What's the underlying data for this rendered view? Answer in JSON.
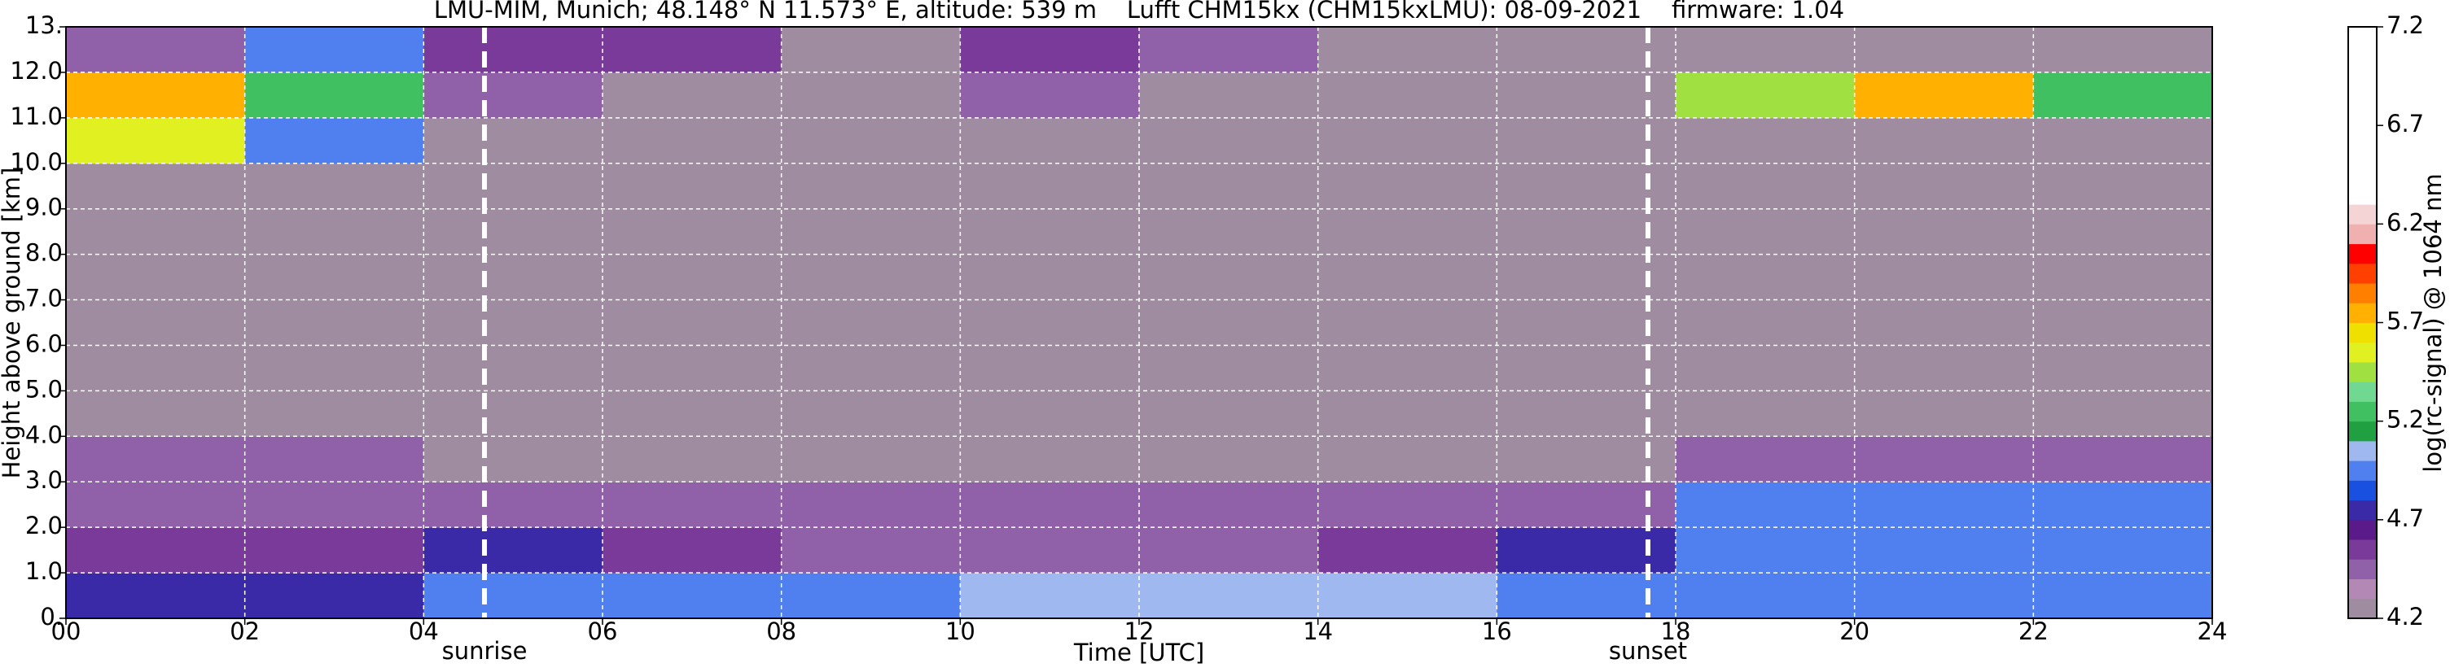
{
  "chart_data": {
    "type": "heatmap",
    "title": "LMU-MIM, Munich; 48.148° N 11.573° E, altitude: 539 m    Lufft CHM15kx (CHM15kxLMU): 08-09-2021    firmware: 1.04",
    "xlabel": "Time [UTC]",
    "ylabel": "Height above ground [km]",
    "colorbar_label": "log(rc-signal) @ 1064 nm",
    "x_bins": [
      0,
      2,
      4,
      6,
      8,
      10,
      12,
      14,
      16,
      18,
      20,
      22,
      24
    ],
    "y_bins": [
      0,
      1,
      2,
      3,
      4,
      5,
      6,
      7,
      8,
      9,
      10,
      11,
      12,
      13
    ],
    "z": [
      [
        4.8,
        4.8,
        4.9,
        4.9,
        5.0,
        5.1,
        5.1,
        5.1,
        5.0,
        4.9,
        4.9,
        4.9
      ],
      [
        4.6,
        4.6,
        4.7,
        4.6,
        4.5,
        4.5,
        4.5,
        4.6,
        4.7,
        4.9,
        4.9,
        4.9
      ],
      [
        4.5,
        4.5,
        4.5,
        4.4,
        4.4,
        4.4,
        4.4,
        4.4,
        4.5,
        5.0,
        4.9,
        4.9
      ],
      [
        4.4,
        4.4,
        4.3,
        4.3,
        4.3,
        4.3,
        4.3,
        4.3,
        4.3,
        4.5,
        4.5,
        4.5
      ],
      [
        4.3,
        4.3,
        4.2,
        4.2,
        4.2,
        4.2,
        4.2,
        4.2,
        4.2,
        4.3,
        4.3,
        4.3
      ],
      [
        4.3,
        4.3,
        4.2,
        4.2,
        4.2,
        4.2,
        4.2,
        4.2,
        4.2,
        4.3,
        4.3,
        4.3
      ],
      [
        4.3,
        4.3,
        4.2,
        4.2,
        4.2,
        4.2,
        4.2,
        4.2,
        4.2,
        4.3,
        4.3,
        4.3
      ],
      [
        4.3,
        4.3,
        4.2,
        4.2,
        4.2,
        4.2,
        4.2,
        4.2,
        4.2,
        4.3,
        4.3,
        4.3
      ],
      [
        4.3,
        4.3,
        4.2,
        4.2,
        4.2,
        4.2,
        4.2,
        4.2,
        4.2,
        4.3,
        4.3,
        4.3
      ],
      [
        4.3,
        4.3,
        4.2,
        4.2,
        4.2,
        4.2,
        4.2,
        4.2,
        4.2,
        4.3,
        4.3,
        4.3
      ],
      [
        5.6,
        5.0,
        4.2,
        4.2,
        4.2,
        4.2,
        4.2,
        4.2,
        4.2,
        4.3,
        4.3,
        4.3
      ],
      [
        5.7,
        5.3,
        4.5,
        4.3,
        4.3,
        4.4,
        4.3,
        4.2,
        4.2,
        5.4,
        5.8,
        5.2
      ],
      [
        4.5,
        4.9,
        4.6,
        4.6,
        4.3,
        4.6,
        4.5,
        4.2,
        4.2,
        4.3,
        4.3,
        4.3
      ]
    ],
    "xlim": [
      0,
      24
    ],
    "ylim": [
      0,
      13
    ],
    "zlim": [
      4.2,
      7.2
    ],
    "xticks": [
      {
        "value": 0,
        "label": "00"
      },
      {
        "value": 2,
        "label": "02"
      },
      {
        "value": 4,
        "label": "04"
      },
      {
        "value": 6,
        "label": "06"
      },
      {
        "value": 8,
        "label": "08"
      },
      10,
      12,
      14,
      16,
      18,
      20,
      22,
      24
    ],
    "yticks": [
      {
        "value": 0,
        "label": "0."
      },
      {
        "value": 1,
        "label": "1.0"
      },
      {
        "value": 2,
        "label": "2.0"
      },
      {
        "value": 3,
        "label": "3.0"
      },
      {
        "value": 4,
        "label": "4.0"
      },
      {
        "value": 5,
        "label": "5.0"
      },
      {
        "value": 6,
        "label": "6.0"
      },
      {
        "value": 7,
        "label": "7.0"
      },
      {
        "value": 8,
        "label": "8.0"
      },
      {
        "value": 9,
        "label": "9.0"
      },
      {
        "value": 10,
        "label": "10.0"
      },
      {
        "value": 11,
        "label": "11.0"
      },
      {
        "value": 12,
        "label": "12.0"
      },
      {
        "value": 13,
        "label": "13."
      }
    ],
    "zticks": [
      4.2,
      4.7,
      5.2,
      5.7,
      6.2,
      6.7,
      7.2
    ],
    "grid": true,
    "vlines": [
      {
        "x": 4.68,
        "label": "sunrise"
      },
      {
        "x": 17.69,
        "label": "sunset"
      }
    ],
    "colorscale": [
      "#a08ca0",
      "#b488b4",
      "#9060a8",
      "#7a3a9a",
      "#5a1a8a",
      "#3a2aa8",
      "#1a50e0",
      "#5080f0",
      "#a0b8f0",
      "#20a040",
      "#40c060",
      "#70d890",
      "#a0e040",
      "#e0f020",
      "#f0e000",
      "#ffb000",
      "#ff8000",
      "#ff4000",
      "#ff0000",
      "#f0b0b0",
      "#f4d4d4",
      "#ffffff",
      "#ffffff",
      "#ffffff",
      "#ffffff",
      "#ffffff",
      "#ffffff",
      "#ffffff",
      "#ffffff",
      "#ffffff"
    ]
  }
}
